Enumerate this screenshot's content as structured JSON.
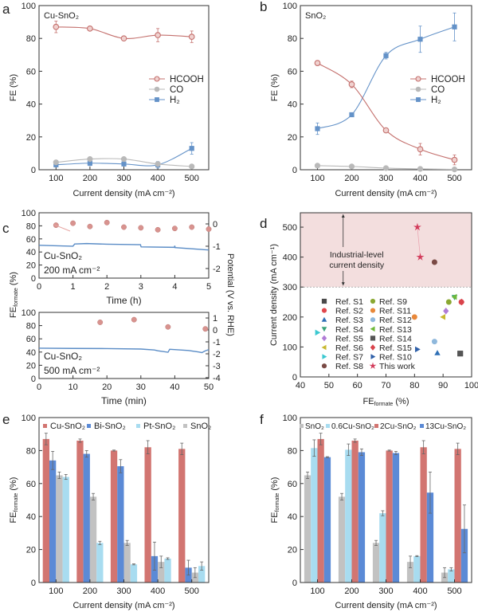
{
  "panel_letters": [
    "a",
    "b",
    "c",
    "d",
    "e",
    "f"
  ],
  "chart_data": [
    {
      "panel": "a",
      "type": "line",
      "title": "Cu-SnO₂",
      "xlabel": "Current density (mA cm⁻²)",
      "ylabel": "FE (%)",
      "xlim": [
        50,
        550
      ],
      "ylim": [
        0,
        100
      ],
      "xticks": [
        100,
        200,
        300,
        400,
        500
      ],
      "yticks": [
        0,
        20,
        40,
        60,
        80,
        100
      ],
      "x": [
        100,
        200,
        300,
        400,
        500
      ],
      "legend_position": "center-right",
      "series": [
        {
          "name": "HCOOH",
          "values": [
            87,
            86,
            80,
            82,
            81
          ],
          "errors": [
            3.5,
            1,
            1,
            4,
            3.5
          ],
          "color": "#c4706d",
          "marker": "circle-open"
        },
        {
          "name": "CO",
          "values": [
            4.5,
            6.5,
            6.5,
            3.5,
            2
          ],
          "errors": [
            0.8,
            1,
            1,
            0.8,
            0.5
          ],
          "color": "#b9b9b9",
          "marker": "circle"
        },
        {
          "name": "H₂",
          "values": [
            3,
            4,
            3.5,
            3,
            13
          ],
          "errors": [
            1,
            1.5,
            1,
            2,
            3.5
          ],
          "color": "#6492c8",
          "marker": "square"
        }
      ]
    },
    {
      "panel": "b",
      "type": "line",
      "title": "SnO₂",
      "xlabel": "Current density (mA cm⁻²)",
      "ylabel": "FE (%)",
      "xlim": [
        50,
        550
      ],
      "ylim": [
        0,
        100
      ],
      "xticks": [
        100,
        200,
        300,
        400,
        500
      ],
      "yticks": [
        0,
        20,
        40,
        60,
        80,
        100
      ],
      "x": [
        100,
        200,
        300,
        400,
        500
      ],
      "legend_position": "center-right",
      "series": [
        {
          "name": "HCOOH",
          "values": [
            65,
            52,
            24,
            12.5,
            6
          ],
          "errors": [
            1.5,
            2,
            1,
            3.5,
            3
          ],
          "color": "#c4706d",
          "marker": "circle-open"
        },
        {
          "name": "CO",
          "values": [
            2.5,
            2,
            1,
            0.5,
            0.2
          ],
          "errors": [
            0.5,
            0.5,
            0.3,
            0.2,
            0.1
          ],
          "color": "#b9b9b9",
          "marker": "circle"
        },
        {
          "name": "H₂",
          "values": [
            25,
            33.5,
            69.5,
            79.5,
            87
          ],
          "errors": [
            3.5,
            1,
            2,
            8,
            8.5
          ],
          "color": "#6492c8",
          "marker": "square"
        }
      ]
    },
    {
      "panel": "c-top",
      "type": "scatter",
      "xlabel": "Time (h)",
      "ylabel_main": "FE",
      "ylabel_sub": "formate",
      "ylabel_tail": " (%)",
      "y2label": "Potential (V vs. RHE)",
      "annotation_catalyst": "Cu-SnO₂",
      "annotation_current": "200 mA cm⁻²",
      "xlim": [
        0,
        5
      ],
      "ylim": [
        0,
        100
      ],
      "y2lim": [
        -2.43,
        0.5
      ],
      "xticks": [
        0,
        1,
        2,
        3,
        4,
        5
      ],
      "yticks": [
        0,
        20,
        40,
        60,
        80,
        100
      ],
      "y2ticks": [
        0,
        -1,
        -2
      ],
      "fe": {
        "x": [
          0.5,
          1,
          1.5,
          2,
          2.5,
          3,
          3.5,
          4,
          4.5,
          5
        ],
        "y": [
          81,
          84,
          79,
          85,
          78,
          77,
          74,
          76,
          78,
          75
        ],
        "color": "#d8938f"
      },
      "potential": {
        "x": [
          0,
          0.95,
          1.0,
          1.05,
          1.4,
          2,
          2.99,
          3.0,
          3.01,
          3.99,
          4.0,
          4.01,
          5
        ],
        "y": [
          -0.96,
          -1.0,
          -1.0,
          -0.9,
          -0.88,
          -0.91,
          -0.93,
          -1.0,
          -1.03,
          -1.05,
          -0.98,
          -1.06,
          -1.17
        ],
        "color": "#5a8cc6"
      }
    },
    {
      "panel": "c-bottom",
      "type": "scatter",
      "xlabel": "Time (min)",
      "annotation_catalyst": "Cu-SnO₂",
      "annotation_current": "500 mA cm⁻²",
      "xlim": [
        0,
        50
      ],
      "ylim": [
        0,
        100
      ],
      "y2lim": [
        -4.07,
        1.47
      ],
      "xticks": [
        0,
        10,
        20,
        30,
        40,
        50
      ],
      "yticks": [
        0,
        20,
        40,
        60,
        80,
        100
      ],
      "y2ticks": [
        1,
        0,
        -1,
        -2,
        -3,
        -4
      ],
      "fe": {
        "x": [
          18,
          28,
          38,
          49
        ],
        "y": [
          85,
          89,
          78,
          75
        ],
        "color": "#d8938f"
      },
      "potential": {
        "x": [
          0,
          10,
          20,
          30,
          34,
          35,
          38,
          38.5,
          39,
          44,
          47,
          48,
          49,
          50
        ],
        "y": [
          -1.53,
          -1.55,
          -1.56,
          -1.6,
          -1.68,
          -1.75,
          -1.87,
          -1.62,
          -1.63,
          -1.72,
          -1.85,
          -1.9,
          -1.75,
          -1.65
        ],
        "color": "#5a8cc6"
      }
    },
    {
      "panel": "d",
      "type": "scatter",
      "xlabel_main": "FE",
      "xlabel_sub": "formate",
      "xlabel_tail": " (%)",
      "ylabel": "Current density (mA cm⁻¹)",
      "xlim": [
        40,
        100
      ],
      "ylim": [
        0,
        548
      ],
      "xticks": [
        40,
        50,
        60,
        70,
        80,
        90,
        100
      ],
      "yticks": [
        0,
        100,
        200,
        300,
        400,
        500
      ],
      "region": {
        "label_line1": "Industrial-level",
        "label_line2": "current density",
        "from": 300,
        "color": "#f3dede",
        "arrow_x": 55
      },
      "legend_position": "lower-center",
      "points": [
        {
          "name": "Ref. S1",
          "x": 96,
          "y": 78,
          "shape": "square",
          "color": "#4a4a4a"
        },
        {
          "name": "Ref. S2",
          "x": 96.4,
          "y": 250,
          "shape": "circle",
          "color": "#e0474c"
        },
        {
          "name": "Ref. S3",
          "x": 88,
          "y": 80,
          "shape": "triangle-up",
          "color": "#2e6fb5"
        },
        {
          "name": "Ref. S4",
          "x": 94,
          "y": 266,
          "shape": "triangle-down",
          "color": "#3aa37a"
        },
        {
          "name": "Ref. S5",
          "x": 91,
          "y": 220,
          "shape": "diamond",
          "color": "#b07cd6"
        },
        {
          "name": "Ref. S6",
          "x": 90,
          "y": 200,
          "shape": "triangle-left",
          "color": "#c8b830"
        },
        {
          "name": "Ref. S7",
          "x": 46,
          "y": 148,
          "shape": "triangle-right",
          "color": "#3bc8d0"
        },
        {
          "name": "Ref. S8",
          "x": 87,
          "y": 383,
          "shape": "circle",
          "color": "#7a4a45"
        },
        {
          "name": "Ref. S9",
          "x": 92,
          "y": 250,
          "shape": "circle",
          "color": "#8aa832"
        },
        {
          "name": "Ref. S11",
          "x": 80,
          "y": 200,
          "shape": "circle",
          "color": "#e8883a"
        },
        {
          "name": "Ref. S12",
          "x": 87,
          "y": 118,
          "shape": "circle",
          "color": "#8fb8dc"
        },
        {
          "name": "Ref. S13",
          "x": 94,
          "y": 267,
          "shape": "triangle-left",
          "color": "#6fb83a"
        },
        {
          "name": "Ref. S14",
          "x": 96,
          "y": 78,
          "shape": "square",
          "color": "#555555"
        },
        {
          "name": "Ref. S15",
          "x": 96.5,
          "y": 250,
          "shape": "diamond",
          "color": "#d9434b"
        },
        {
          "name": "Ref. S10",
          "x": 81,
          "y": 92,
          "shape": "triangle-right",
          "color": "#2e5fa8"
        },
        {
          "name": "This work",
          "x": [
            81,
            82
          ],
          "y": [
            500,
            400
          ],
          "shape": "star",
          "color": "#d23a5a"
        }
      ]
    },
    {
      "panel": "e",
      "type": "bar",
      "xlabel": "Current density (mA cm⁻²)",
      "ylabel_main": "FE",
      "ylabel_sub": "formate",
      "ylabel_tail": " (%)",
      "categories": [
        100,
        200,
        300,
        400,
        500
      ],
      "xlim": [
        50,
        550
      ],
      "ylim": [
        0,
        100
      ],
      "yticks": [
        0,
        20,
        40,
        60,
        80,
        100
      ],
      "legend_position": "top",
      "legend_order": [
        0,
        1,
        3,
        2
      ],
      "series": [
        {
          "name": "Cu-SnO₂",
          "values": [
            87,
            86,
            80,
            82,
            81
          ],
          "errors": [
            3.5,
            1,
            0.3,
            4,
            3.5
          ],
          "color": "#d27571"
        },
        {
          "name": "Bi-SnO₂",
          "values": [
            74,
            78,
            70.5,
            16,
            9
          ],
          "errors": [
            5.5,
            2,
            4,
            8.5,
            4.5
          ],
          "color": "#5b8ad6"
        },
        {
          "name": "SnO₂",
          "values": [
            65,
            52,
            24,
            12.5,
            6
          ],
          "errors": [
            2,
            2,
            1.5,
            3.5,
            3
          ],
          "color": "#c2c2c2"
        },
        {
          "name": "Pt-SnO₂",
          "values": [
            64,
            24,
            11,
            14.5,
            10
          ],
          "errors": [
            1.5,
            1,
            0.3,
            0.5,
            2.5
          ],
          "color": "#a8dcf0"
        }
      ]
    },
    {
      "panel": "f",
      "type": "bar",
      "xlabel": "Current density (mA cm⁻²)",
      "ylabel_main": "FE",
      "ylabel_sub": "formate",
      "ylabel_tail": " (%)",
      "categories": [
        100,
        200,
        300,
        400,
        500
      ],
      "xlim": [
        50,
        550
      ],
      "ylim": [
        0,
        100
      ],
      "yticks": [
        0,
        20,
        40,
        60,
        80,
        100
      ],
      "legend_position": "top",
      "legend_order": [
        0,
        1,
        2,
        3
      ],
      "series": [
        {
          "name": "SnO₂",
          "values": [
            65,
            52,
            24,
            12.5,
            6
          ],
          "errors": [
            2,
            2,
            1.5,
            3.5,
            3
          ],
          "color": "#c2c2c2"
        },
        {
          "name": "0.6Cu-SnO₂",
          "values": [
            81.5,
            80.5,
            42,
            16,
            8
          ],
          "errors": [
            5,
            3.5,
            1.5,
            0.3,
            1
          ],
          "color": "#a8dcf0"
        },
        {
          "name": "2Cu-SnO₂",
          "values": [
            87,
            86,
            80,
            82,
            81
          ],
          "errors": [
            3.5,
            1,
            0.3,
            4,
            3.5
          ],
          "color": "#d27571"
        },
        {
          "name": "13Cu-SnO₂",
          "values": [
            76,
            79,
            78.5,
            54.5,
            32.5
          ],
          "errors": [
            0.3,
            2,
            1,
            12.5,
            14.5
          ],
          "color": "#5b8ad6"
        }
      ]
    }
  ]
}
